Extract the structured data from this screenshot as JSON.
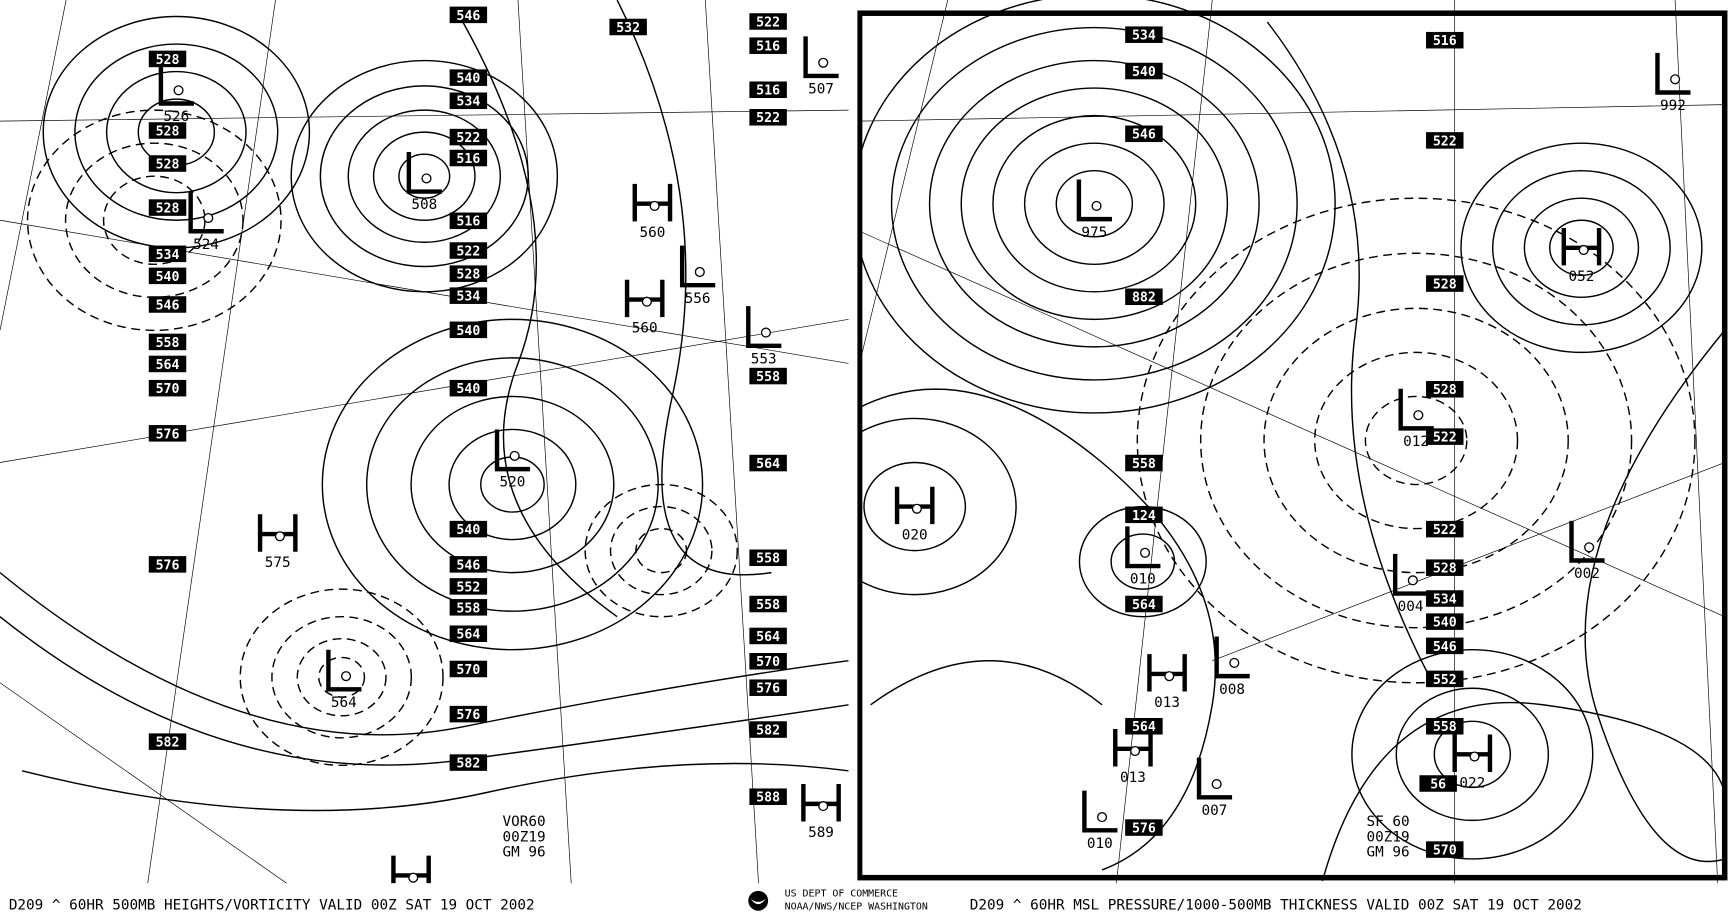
{
  "left_panel": {
    "caption": "D209 ^   60HR  500MB HEIGHTS/VORTICITY VALID 00Z SAT 19 OCT 2002",
    "info_block": [
      "VOR60",
      "00Z19",
      "GM 96"
    ],
    "height_labels": [
      "546",
      "532",
      "522",
      "516",
      "540",
      "534",
      "522",
      "516",
      "516",
      "522",
      "528",
      "534",
      "540",
      "540",
      "540",
      "546",
      "552",
      "558",
      "564",
      "570",
      "576",
      "582",
      "528",
      "528",
      "528",
      "528",
      "534",
      "540",
      "546",
      "558",
      "564",
      "570",
      "576",
      "576",
      "582",
      "516",
      "522",
      "564",
      "558",
      "558",
      "564",
      "570",
      "576",
      "582",
      "588",
      "558"
    ],
    "centers": [
      {
        "type": "L",
        "value": "526"
      },
      {
        "type": "L",
        "value": "524"
      },
      {
        "type": "L",
        "value": "508"
      },
      {
        "type": "H",
        "value": "560"
      },
      {
        "type": "H",
        "value": "560"
      },
      {
        "type": "L",
        "value": "556"
      },
      {
        "type": "L",
        "value": "553"
      },
      {
        "type": "L",
        "value": "520"
      },
      {
        "type": "H",
        "value": "575"
      },
      {
        "type": "L",
        "value": "564"
      },
      {
        "type": "L",
        "value": "507"
      },
      {
        "type": "H",
        "value": "589"
      },
      {
        "type": "H",
        "value": ""
      }
    ]
  },
  "right_panel": {
    "caption": "D209 ^   60HR  MSL PRESSURE/1000-500MB THICKNESS VALID 00Z SAT 19 OCT 2002",
    "info_block": [
      "SF 60",
      "00Z19",
      "GM 96"
    ],
    "height_labels": [
      "534",
      "540",
      "546",
      "516",
      "522",
      "882",
      "558",
      "124",
      "564",
      "564",
      "576",
      "528",
      "528",
      "522",
      "522",
      "528",
      "534",
      "540",
      "546",
      "552",
      "558",
      "56",
      "570"
    ],
    "centers": [
      {
        "type": "L",
        "value": "975"
      },
      {
        "type": "L",
        "value": "992"
      },
      {
        "type": "H",
        "value": "052"
      },
      {
        "type": "H",
        "value": "020"
      },
      {
        "type": "L",
        "value": "010"
      },
      {
        "type": "L",
        "value": "012"
      },
      {
        "type": "L",
        "value": "004"
      },
      {
        "type": "L",
        "value": "002"
      },
      {
        "type": "H",
        "value": "013"
      },
      {
        "type": "L",
        "value": "008"
      },
      {
        "type": "H",
        "value": "013"
      },
      {
        "type": "L",
        "value": "007"
      },
      {
        "type": "L",
        "value": "010"
      },
      {
        "type": "H",
        "value": "022"
      }
    ]
  },
  "footer": {
    "agency_line1": "US DEPT OF COMMERCE",
    "agency_line2": "NOAA/NWS/NCEP WASHINGTON",
    "logo_icon": "noaa-logo-icon"
  },
  "colors": {
    "ink": "#000000",
    "paper": "#ffffff"
  }
}
